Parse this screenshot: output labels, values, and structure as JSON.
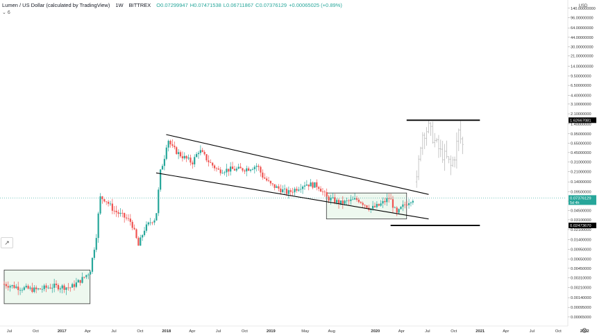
{
  "header": {
    "title": "Lumen / US Dollar (calculated by TradingView)",
    "interval": "1W",
    "exchange": "BITTREX",
    "open": "O0.07299947",
    "high": "H0.07471538",
    "low": "L0.06711867",
    "close": "C0.07376129",
    "change": "+0.00065025 (+0.89%)"
  },
  "toolbar": {
    "collapse_label": "6"
  },
  "price_axis": {
    "currency": "USD",
    "labels": [
      "140.00000000",
      "96.00000000",
      "64.00000000",
      "44.00000000",
      "30.00000000",
      "21.00000000",
      "14.00000000",
      "9.50000000",
      "6.50000000",
      "4.40000000",
      "3.10000000",
      "2.10000000",
      "1.40000000",
      "0.95000000",
      "0.65000000",
      "0.45000000",
      "0.31000000",
      "0.21000000",
      "0.14000000",
      "0.09500000",
      "0.06500000",
      "0.04500000",
      "0.03100000",
      "0.02100000",
      "0.01400000",
      "0.00950000",
      "0.00650000",
      "0.00450000",
      "0.00310000",
      "0.00210000",
      "0.00140000",
      "0.00095000",
      "0.00065000"
    ],
    "markers": {
      "upper": "1.62667081",
      "current": "0.07376129",
      "current_sub": "5d 4h",
      "lower": "0.02473670"
    }
  },
  "time_axis": {
    "labels": [
      "Jul",
      "Oct",
      "2017",
      "Apr",
      "Jul",
      "Oct",
      "2018",
      "Apr",
      "Jul",
      "Oct",
      "2019",
      "May",
      "Aug",
      "2020",
      "Apr",
      "Jul",
      "Oct",
      "2021",
      "Apr",
      "Jul",
      "Oct",
      "2022"
    ]
  },
  "colors": {
    "up": "#26a69a",
    "down": "#ef5350",
    "projection": "#b0b0b0",
    "box_fill": "#e8f5e9",
    "line": "#000000",
    "current_line": "#26a69a"
  },
  "chart_data": {
    "type": "candlestick",
    "symbol": "Lumen / US Dollar",
    "interval": "1W",
    "y_scale": "log",
    "ylim": [
      0.00055,
      160
    ],
    "xlim": [
      "2016-06-13",
      "2022-02-01"
    ],
    "key_levels": {
      "upper": 1.62667081,
      "current": 0.07376129,
      "lower": 0.0247367
    },
    "trendlines": [
      {
        "name": "upper channel",
        "points": [
          [
            "2017-12-31",
            0.92
          ],
          [
            "2020-07-05",
            0.085
          ]
        ]
      },
      {
        "name": "lower channel",
        "points": [
          [
            "2017-11-26",
            0.2
          ],
          [
            "2020-07-05",
            0.032
          ]
        ]
      },
      {
        "name": "target high",
        "points": [
          [
            "2020-04-19",
            1.62667081
          ],
          [
            "2020-12-31",
            1.62667081
          ]
        ]
      },
      {
        "name": "target low",
        "points": [
          [
            "2020-02-23",
            0.0247367
          ],
          [
            "2020-12-31",
            0.0247367
          ]
        ]
      }
    ],
    "boxes": [
      {
        "name": "2016 accumulation",
        "x": [
          "2016-06-13",
          "2017-04-09"
        ],
        "y": [
          0.0011,
          0.0042
        ]
      },
      {
        "name": "2019-2020 range",
        "x": [
          "2019-07-14",
          "2020-04-19"
        ],
        "y": [
          0.032,
          0.09
        ]
      }
    ],
    "series": [
      {
        "name": "price",
        "style": "candles",
        "anchors": [
          [
            "2016-06-13",
            0.0024
          ],
          [
            "2016-08-01",
            0.0021
          ],
          [
            "2016-10-01",
            0.0019
          ],
          [
            "2016-12-01",
            0.0022
          ],
          [
            "2017-02-01",
            0.0021
          ],
          [
            "2017-03-15",
            0.003
          ],
          [
            "2017-04-09",
            0.004
          ],
          [
            "2017-04-30",
            0.015
          ],
          [
            "2017-05-14",
            0.075
          ],
          [
            "2017-06-01",
            0.07
          ],
          [
            "2017-07-01",
            0.045
          ],
          [
            "2017-08-01",
            0.036
          ],
          [
            "2017-09-01",
            0.028
          ],
          [
            "2017-09-25",
            0.011
          ],
          [
            "2017-10-15",
            0.021
          ],
          [
            "2017-11-10",
            0.03
          ],
          [
            "2017-11-25",
            0.033
          ],
          [
            "2017-12-10",
            0.2
          ],
          [
            "2017-12-25",
            0.38
          ],
          [
            "2018-01-05",
            0.8
          ],
          [
            "2018-01-20",
            0.55
          ],
          [
            "2018-02-15",
            0.42
          ],
          [
            "2018-04-01",
            0.3
          ],
          [
            "2018-04-25",
            0.5
          ],
          [
            "2018-06-01",
            0.3
          ],
          [
            "2018-07-01",
            0.22
          ],
          [
            "2018-08-15",
            0.23
          ],
          [
            "2018-09-15",
            0.23
          ],
          [
            "2018-10-15",
            0.24
          ],
          [
            "2018-11-15",
            0.27
          ],
          [
            "2018-12-01",
            0.18
          ],
          [
            "2018-12-31",
            0.125
          ],
          [
            "2019-03-01",
            0.09
          ],
          [
            "2019-05-01",
            0.13
          ],
          [
            "2019-06-15",
            0.12
          ],
          [
            "2019-07-15",
            0.075
          ],
          [
            "2019-09-01",
            0.06
          ],
          [
            "2019-11-01",
            0.07
          ],
          [
            "2019-12-15",
            0.048
          ],
          [
            "2020-01-15",
            0.055
          ],
          [
            "2020-02-20",
            0.075
          ],
          [
            "2020-03-15",
            0.038
          ],
          [
            "2020-04-01",
            0.05
          ],
          [
            "2020-05-01",
            0.068
          ],
          [
            "2020-05-17",
            0.07376129
          ]
        ]
      },
      {
        "name": "projection",
        "style": "bars",
        "anchors": [
          [
            "2020-05-24",
            0.14
          ],
          [
            "2020-06-10",
            0.9
          ],
          [
            "2020-07-05",
            1.2
          ],
          [
            "2020-07-26",
            0.7
          ],
          [
            "2020-08-16",
            0.45
          ],
          [
            "2020-09-06",
            0.35
          ],
          [
            "2020-09-20",
            0.26
          ],
          [
            "2020-10-04",
            0.4
          ],
          [
            "2020-10-18",
            1.0
          ],
          [
            "2020-11-01",
            0.6
          ]
        ]
      }
    ]
  }
}
